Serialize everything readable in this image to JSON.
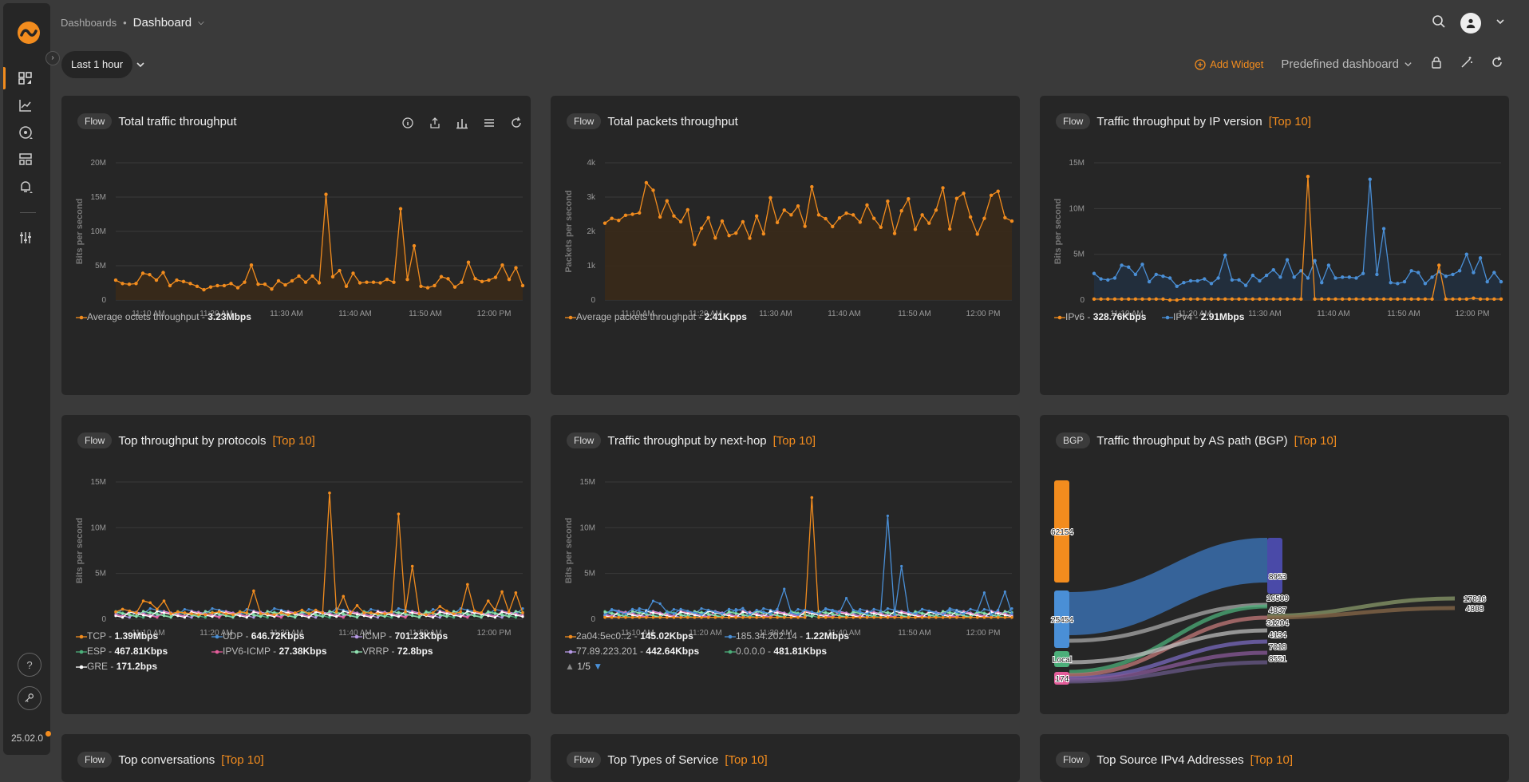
{
  "app": {
    "version": "25.02.0"
  },
  "breadcrumb": {
    "parent": "Dashboards",
    "separator": "•",
    "current": "Dashboard"
  },
  "toolbar": {
    "time_range": "Last 1 hour",
    "add_widget": "Add Widget",
    "predefined": "Predefined dashboard"
  },
  "colors": {
    "accent": "#f28c1e",
    "blue": "#4a8fd6",
    "panel": "#262626",
    "bg": "#3a3a3a"
  },
  "icons": [
    "logo-icon",
    "dashboards-icon",
    "analytics-icon",
    "network-icon",
    "devices-icon",
    "alerts-icon",
    "settings-icon",
    "help-icon",
    "key-icon",
    "search-icon",
    "user-icon",
    "lock-icon",
    "magic-wand-icon",
    "refresh-icon",
    "info-icon",
    "share-icon",
    "bar-chart-icon",
    "menu-icon"
  ],
  "panels": [
    {
      "badge": "Flow",
      "title": "Total traffic throughput",
      "top": "",
      "legend": [
        {
          "name": "Average octets throughput",
          "value": "3.23Mbps",
          "color": "#f28c1e"
        }
      ]
    },
    {
      "badge": "Flow",
      "title": "Total packets throughput",
      "top": "",
      "legend": [
        {
          "name": "Average packets throughput",
          "value": "2.41Kpps",
          "color": "#f28c1e"
        }
      ]
    },
    {
      "badge": "Flow",
      "title": "Traffic throughput by IP version",
      "top": "[Top 10]",
      "legend": [
        {
          "name": "IPv6",
          "value": "328.76Kbps",
          "color": "#f28c1e"
        },
        {
          "name": "IPv4",
          "value": "2.91Mbps",
          "color": "#4a8fd6"
        }
      ]
    },
    {
      "badge": "Flow",
      "title": "Top throughput by protocols",
      "top": "[Top 10]",
      "legend": [
        {
          "name": "TCP",
          "value": "1.39Mbps",
          "color": "#f28c1e"
        },
        {
          "name": "UDP",
          "value": "646.72Kbps",
          "color": "#4a8fd6"
        },
        {
          "name": "ICMP",
          "value": "701.23Kbps",
          "color": "#b79ae6"
        },
        {
          "name": "ESP",
          "value": "467.81Kbps",
          "color": "#4caf7a"
        },
        {
          "name": "IPV6-ICMP",
          "value": "27.38Kbps",
          "color": "#e35d9a"
        },
        {
          "name": "VRRP",
          "value": "72.8bps",
          "color": "#8fe0b0"
        },
        {
          "name": "GRE",
          "value": "171.2bps",
          "color": "#ffffff"
        }
      ]
    },
    {
      "badge": "Flow",
      "title": "Traffic throughput by next-hop",
      "top": "[Top 10]",
      "legend": [
        {
          "name": "2a04:5ec0::2",
          "value": "145.02Kbps",
          "color": "#f28c1e"
        },
        {
          "name": "185.34.202.14",
          "value": "1.22Mbps",
          "color": "#4a8fd6"
        },
        {
          "name": "77.89.223.201",
          "value": "442.64Kbps",
          "color": "#b79ae6"
        },
        {
          "name": "0.0.0.0",
          "value": "481.81Kbps",
          "color": "#4caf7a"
        }
      ],
      "pager": "1/5"
    },
    {
      "badge": "BGP",
      "title": "Traffic throughput by AS path (BGP)",
      "top": "[Top 10]",
      "sankey": {
        "left": [
          "62154",
          "25454",
          "Local",
          "174"
        ],
        "mid": [
          "8953",
          "16509",
          "4837",
          "31204",
          "4134",
          "7018",
          "8551"
        ],
        "right": [
          "17816",
          "4808"
        ]
      }
    },
    {
      "badge": "Flow",
      "title": "Top conversations",
      "top": "[Top 10]"
    },
    {
      "badge": "Flow",
      "title": "Top Types of Service",
      "top": "[Top 10]"
    },
    {
      "badge": "Flow",
      "title": "Top Source IPv4 Addresses",
      "top": "[Top 10]"
    }
  ],
  "chart_data": [
    {
      "type": "area",
      "title": "Total traffic throughput",
      "ylabel": "Bits per second",
      "ylim": [
        0,
        20000000
      ],
      "y_ticks": [
        "0",
        "5M",
        "10M",
        "15M",
        "20M"
      ],
      "x_ticks": [
        "11:10 AM",
        "11:20 AM",
        "11:30 AM",
        "11:40 AM",
        "11:50 AM",
        "12:00 PM"
      ],
      "series": [
        {
          "name": "Average octets throughput",
          "values": [
            2.9,
            2.4,
            2.3,
            2.4,
            3.9,
            3.7,
            2.9,
            4.0,
            2.1,
            2.9,
            2.7,
            2.4,
            2.0,
            1.5,
            1.9,
            2.1,
            2.1,
            2.4,
            1.8,
            2.6,
            5.1,
            2.3,
            2.3,
            1.6,
            2.8,
            2.2,
            2.8,
            3.5,
            2.6,
            3.5,
            2.5,
            15.4,
            3.4,
            4.3,
            2.0,
            3.9,
            2.5,
            2.6,
            2.6,
            2.5,
            3.0,
            2.6,
            13.3,
            3.0,
            7.9,
            2.0,
            1.8,
            2.1,
            3.4,
            3.1,
            1.9,
            2.6,
            5.5,
            3.1,
            2.7,
            2.9,
            3.3,
            5.1,
            3.0,
            4.7,
            2.1
          ]
        }
      ]
    },
    {
      "type": "area",
      "title": "Total packets throughput",
      "ylabel": "Packets per second",
      "ylim": [
        0,
        4000
      ],
      "y_ticks": [
        "0",
        "1k",
        "2k",
        "3k",
        "4k"
      ],
      "x_ticks": [
        "11:10 AM",
        "11:20 AM",
        "11:30 AM",
        "11:40 AM",
        "11:50 AM",
        "12:00 PM"
      ],
      "series": [
        {
          "name": "Average packets throughput",
          "values": [
            2240,
            2380,
            2320,
            2470,
            2500,
            2540,
            3420,
            3200,
            2420,
            2890,
            2450,
            2280,
            2630,
            1620,
            2090,
            2400,
            1810,
            2300,
            1880,
            1950,
            2280,
            1800,
            2450,
            1930,
            2980,
            2260,
            2620,
            2480,
            2740,
            2150,
            3300,
            2480,
            2370,
            2140,
            2390,
            2530,
            2480,
            2270,
            2770,
            2380,
            2120,
            2880,
            1940,
            2600,
            2950,
            2060,
            2480,
            2240,
            2620,
            3270,
            2070,
            2960,
            3110,
            2420,
            1920,
            2380,
            3050,
            3170,
            2400,
            2300
          ]
        }
      ]
    },
    {
      "type": "line",
      "title": "Traffic throughput by IP version",
      "ylabel": "Bits per second",
      "ylim": [
        0,
        15000000
      ],
      "y_ticks": [
        "0",
        "5M",
        "10M",
        "15M"
      ],
      "x_ticks": [
        "11:10 AM",
        "11:20 AM",
        "11:30 AM",
        "11:40 AM",
        "11:50 AM",
        "12:00 PM"
      ],
      "series": [
        {
          "name": "IPv6",
          "values": [
            0.1,
            0.1,
            0.1,
            0.1,
            0.1,
            0.1,
            0.1,
            0.1,
            0.1,
            0.1,
            0.1,
            0,
            0,
            0.1,
            0.1,
            0.1,
            0.1,
            0.1,
            0.1,
            0.1,
            0.1,
            0.1,
            0.1,
            0.1,
            0.1,
            0.1,
            0.1,
            0.1,
            0.1,
            0.1,
            0.1,
            13.5,
            0.1,
            0.1,
            0.1,
            0.1,
            0.1,
            0.1,
            0.1,
            0.1,
            0.1,
            0.1,
            0.1,
            0.1,
            0.1,
            0.1,
            0.1,
            0.1,
            0.1,
            0.1,
            3.8,
            0.1,
            0.1,
            0.1,
            0.1,
            0.2,
            0.1,
            0.1,
            0.1,
            0.1
          ]
        },
        {
          "name": "IPv4",
          "values": [
            2.9,
            2.3,
            2.2,
            2.4,
            3.8,
            3.6,
            2.8,
            3.9,
            2.0,
            2.8,
            2.6,
            2.4,
            1.5,
            1.9,
            2.1,
            2.1,
            2.3,
            1.8,
            2.4,
            4.9,
            2.2,
            2.2,
            1.6,
            2.7,
            2.1,
            2.7,
            3.3,
            2.5,
            4.4,
            2.5,
            3.2,
            2.4,
            4.3,
            1.9,
            3.8,
            2.4,
            2.5,
            2.5,
            2.4,
            2.9,
            13.2,
            2.8,
            7.8,
            1.9,
            1.8,
            2.0,
            3.2,
            3.0,
            1.8,
            2.5,
            3.1,
            2.6,
            2.8,
            3.2,
            5.0,
            3.0,
            4.6,
            2.0,
            3.0,
            2.0
          ]
        }
      ]
    },
    {
      "type": "line",
      "title": "Top throughput by protocols",
      "ylabel": "Bits per second",
      "ylim": [
        0,
        15000000
      ],
      "y_ticks": [
        "0",
        "5M",
        "10M",
        "15M"
      ],
      "x_ticks": [
        "11:10 AM",
        "11:20 AM",
        "11:30 AM",
        "11:40 AM",
        "11:50 AM",
        "12:00 PM"
      ]
    },
    {
      "type": "line",
      "title": "Traffic throughput by next-hop",
      "ylabel": "Bits per second",
      "ylim": [
        0,
        15000000
      ],
      "y_ticks": [
        "0",
        "5M",
        "10M",
        "15M"
      ],
      "x_ticks": [
        "11:10 AM",
        "11:20 AM",
        "11:30 AM",
        "11:40 AM",
        "11:50 AM",
        "12:00 PM"
      ]
    }
  ]
}
